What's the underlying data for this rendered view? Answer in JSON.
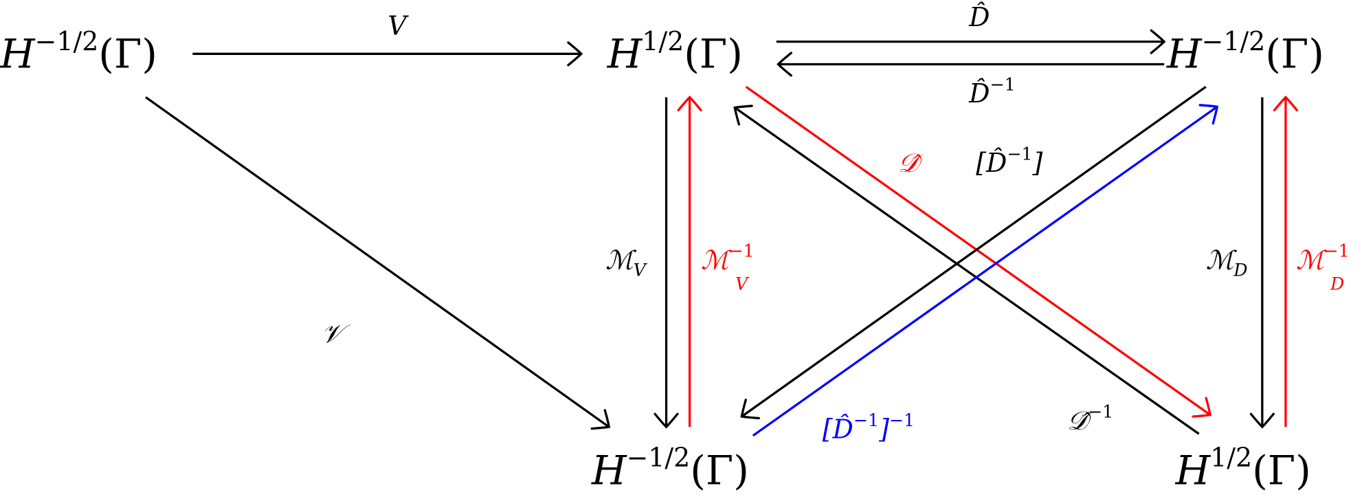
{
  "colors": {
    "black": "#000000",
    "red": "#ff0000",
    "blue": "#0000ff"
  },
  "nodes": [
    {
      "id": "a",
      "base": "H",
      "sup": "−1/2",
      "rest": "(Γ)"
    },
    {
      "id": "b",
      "base": "H",
      "sup": "1/2",
      "rest": "(Γ)"
    },
    {
      "id": "c",
      "base": "H",
      "sup": "−1/2",
      "rest": "(Γ)"
    },
    {
      "id": "d",
      "base": "H",
      "sup": "−1/2",
      "rest": "(Γ)"
    },
    {
      "id": "e",
      "base": "H",
      "sup": "1/2",
      "rest": "(Γ)"
    }
  ],
  "edges": [
    {
      "id": "V",
      "from": "a",
      "to": "b",
      "color": "black",
      "label": [
        {
          "t": "V"
        }
      ]
    },
    {
      "id": "D-hat",
      "from": "b",
      "to": "c",
      "color": "black",
      "label": [
        {
          "t": "D̂"
        }
      ]
    },
    {
      "id": "D-hat-inv",
      "from": "c",
      "to": "b",
      "color": "black",
      "label": [
        {
          "t": "D̂"
        },
        {
          "t": "−1",
          "s": "sup"
        }
      ]
    },
    {
      "id": "M-V",
      "from": "b",
      "to": "d",
      "color": "black",
      "label": [
        {
          "t": "ℳ"
        },
        {
          "t": "V",
          "s": "sub"
        }
      ]
    },
    {
      "id": "M-V-inv",
      "from": "d",
      "to": "b",
      "color": "red",
      "label": [
        {
          "t": "ℳ"
        },
        {
          "t": "−1",
          "s": "sup"
        },
        {
          "t": "V",
          "s": "sub2"
        }
      ]
    },
    {
      "id": "M-D",
      "from": "c",
      "to": "e",
      "color": "black",
      "label": [
        {
          "t": "ℳ"
        },
        {
          "t": "D",
          "s": "sub"
        }
      ]
    },
    {
      "id": "M-D-inv",
      "from": "e",
      "to": "c",
      "color": "red",
      "label": [
        {
          "t": "ℳ"
        },
        {
          "t": "−1",
          "s": "sup"
        },
        {
          "t": "D",
          "s": "sub2"
        }
      ]
    },
    {
      "id": "cal-V",
      "from": "a",
      "to": "d",
      "color": "black",
      "label": [
        {
          "t": "𝒱"
        }
      ]
    },
    {
      "id": "cal-D-hat",
      "from": "b",
      "to": "e",
      "color": "red",
      "label": [
        {
          "t": "𝒟̂"
        }
      ]
    },
    {
      "id": "cal-D-hat-inv",
      "from": "e",
      "to": "b",
      "color": "black",
      "label": [
        {
          "t": "𝒟̂"
        },
        {
          "t": "−1",
          "s": "sup"
        }
      ]
    },
    {
      "id": "bracket-D-hat-inv",
      "from": "c",
      "to": "d",
      "color": "black",
      "label": [
        {
          "t": "[D̂"
        },
        {
          "t": "−1",
          "s": "sup"
        },
        {
          "t": "]"
        }
      ]
    },
    {
      "id": "bracket-D-hat-inv-inv",
      "from": "d",
      "to": "c",
      "color": "blue",
      "label": [
        {
          "t": "[D̂"
        },
        {
          "t": "−1",
          "s": "sup"
        },
        {
          "t": "]"
        },
        {
          "t": "−1",
          "s": "sup"
        }
      ]
    }
  ]
}
